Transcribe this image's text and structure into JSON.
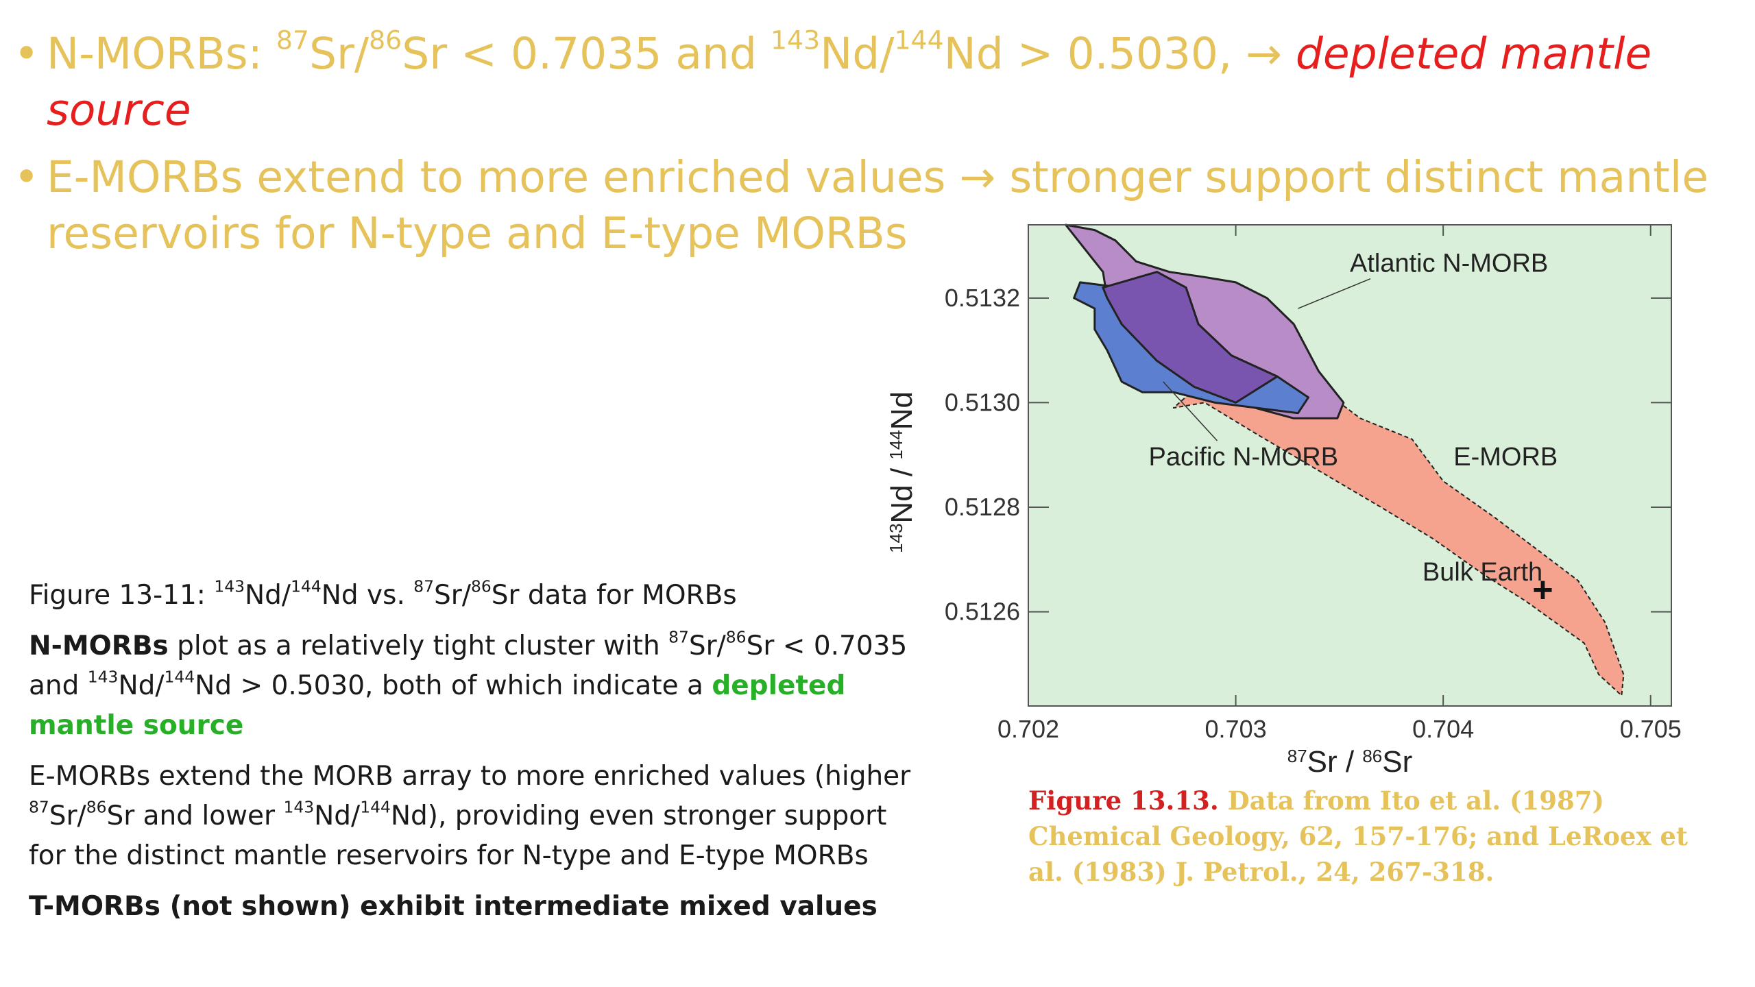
{
  "bullets": [
    {
      "dot": "•",
      "t1": "N-MORBs: ",
      "sup1": "87",
      "t2": "Sr/",
      "sup2": "86",
      "t3": "Sr < 0.7035 and ",
      "sup3": "143",
      "t4": "Nd/",
      "sup4": "144",
      "t5": "Nd > 0.5030, → ",
      "emph": "depleted mantle source"
    },
    {
      "dot": "•",
      "text": "E-MORBs extend to more enriched values → stronger support distinct mantle reservoirs for N-type and E-type MORBs"
    }
  ],
  "caption": {
    "p1": {
      "a": "Figure 13-11: ",
      "s1": "143",
      "b": "Nd/",
      "s2": "144",
      "c": "Nd vs. ",
      "s3": "87",
      "d": "Sr/",
      "s4": "86",
      "e": "Sr data for MORBs"
    },
    "p2": {
      "bold": "N-MORBs",
      "a": " plot as a relatively tight cluster with ",
      "s1": "87",
      "b": "Sr/",
      "s2": "86",
      "c": "Sr < 0.7035 and ",
      "s3": "143",
      "d": "Nd/",
      "s4": "144",
      "e": "Nd > 0.5030, both of which indicate a ",
      "green": "depleted mantle source"
    },
    "p3": {
      "a": "E-MORBs extend the MORB array to more enriched values (higher ",
      "s1": "87",
      "b": "Sr/",
      "s2": "86",
      "c": "Sr and lower ",
      "s3": "143",
      "d": "Nd/",
      "s4": "144",
      "e": "Nd), providing even stronger support for the distinct mantle reservoirs for N-type and E-type MORBs"
    },
    "p4": "T-MORBs (not shown) exhibit intermediate mixed values"
  },
  "figure_note": {
    "ref": "Figure 13.13.",
    "text": " Data from Ito et al. (1987) Chemical Geology, 62, 157-176; and LeRoex et al. (1983) J. Petrol., 24, 267-318."
  },
  "chart_data": {
    "type": "scatter",
    "title": "",
    "xlabel": {
      "sup1": "87",
      "t1": "Sr / ",
      "sup2": "86",
      "t2": "Sr"
    },
    "ylabel": {
      "sup1": "143",
      "t1": "Nd / ",
      "sup2": "144",
      "t2": "Nd"
    },
    "xlim": [
      0.702,
      0.7051
    ],
    "ylim": [
      0.51242,
      0.51334
    ],
    "xticks": [
      0.702,
      0.703,
      0.704,
      0.705
    ],
    "xtick_labels": [
      "0.702",
      "0.703",
      "0.704",
      "0.705"
    ],
    "yticks": [
      0.5126,
      0.5128,
      0.513,
      0.5132
    ],
    "ytick_labels": [
      "0.5126",
      "0.5128",
      "0.5130",
      "0.5132"
    ],
    "grid": false,
    "colors": {
      "background": "#d9efd9",
      "e_morb": "#f5a38f",
      "atlantic": "#b88cc6",
      "pacific": "#5c7fcf",
      "overlap": "#7a55b0"
    },
    "fields": [
      {
        "name": "E-MORB",
        "label": "E-MORB",
        "fill": "#f5a38f",
        "stroke_style": "dashed",
        "points": [
          [
            0.70308,
            0.51311
          ],
          [
            0.7033,
            0.51306
          ],
          [
            0.7036,
            0.51297
          ],
          [
            0.70385,
            0.51293
          ],
          [
            0.704,
            0.51285
          ],
          [
            0.70425,
            0.51278
          ],
          [
            0.70445,
            0.51272
          ],
          [
            0.70465,
            0.51266
          ],
          [
            0.70478,
            0.51258
          ],
          [
            0.70487,
            0.51248
          ],
          [
            0.70486,
            0.51244
          ],
          [
            0.70475,
            0.51248
          ],
          [
            0.70468,
            0.51254
          ],
          [
            0.7044,
            0.51262
          ],
          [
            0.7042,
            0.51267
          ],
          [
            0.70395,
            0.51274
          ],
          [
            0.7037,
            0.5128
          ],
          [
            0.7034,
            0.51287
          ],
          [
            0.7031,
            0.51294
          ],
          [
            0.70285,
            0.513
          ],
          [
            0.7027,
            0.51299
          ],
          [
            0.7029,
            0.51306
          ]
        ]
      },
      {
        "name": "Atlantic N-MORB",
        "label": "Atlantic N-MORB",
        "fill": "#b88cc6",
        "stroke_style": "solid",
        "points": [
          [
            0.70218,
            0.51334
          ],
          [
            0.70232,
            0.51333
          ],
          [
            0.70242,
            0.51331
          ],
          [
            0.70252,
            0.51327
          ],
          [
            0.70268,
            0.51325
          ],
          [
            0.70285,
            0.51324
          ],
          [
            0.703,
            0.51323
          ],
          [
            0.70315,
            0.5132
          ],
          [
            0.70328,
            0.51315
          ],
          [
            0.7034,
            0.51306
          ],
          [
            0.70352,
            0.513
          ],
          [
            0.70349,
            0.51297
          ],
          [
            0.70328,
            0.51297
          ],
          [
            0.703,
            0.513
          ],
          [
            0.7028,
            0.51303
          ],
          [
            0.70262,
            0.51308
          ],
          [
            0.70245,
            0.51315
          ],
          [
            0.70238,
            0.5132
          ],
          [
            0.70236,
            0.51325
          ],
          [
            0.70228,
            0.51329
          ]
        ]
      },
      {
        "name": "Pacific N-MORB",
        "label": "Pacific N-MORB",
        "fill": "#5c7fcf",
        "stroke_style": "solid",
        "points": [
          [
            0.70225,
            0.51323
          ],
          [
            0.70245,
            0.51322
          ],
          [
            0.70262,
            0.51325
          ],
          [
            0.70276,
            0.51322
          ],
          [
            0.70282,
            0.51315
          ],
          [
            0.70298,
            0.51309
          ],
          [
            0.7032,
            0.51305
          ],
          [
            0.70335,
            0.51301
          ],
          [
            0.7033,
            0.51298
          ],
          [
            0.7031,
            0.51299
          ],
          [
            0.7029,
            0.513
          ],
          [
            0.7027,
            0.51302
          ],
          [
            0.70255,
            0.51302
          ],
          [
            0.70245,
            0.51304
          ],
          [
            0.70238,
            0.5131
          ],
          [
            0.70232,
            0.51314
          ],
          [
            0.70232,
            0.51318
          ],
          [
            0.70222,
            0.5132
          ]
        ]
      },
      {
        "name": "overlap",
        "fill": "#7a55b0",
        "stroke_style": "solid",
        "points": [
          [
            0.70236,
            0.51322
          ],
          [
            0.70262,
            0.51325
          ],
          [
            0.70276,
            0.51322
          ],
          [
            0.70282,
            0.51315
          ],
          [
            0.70298,
            0.51309
          ],
          [
            0.7032,
            0.51305
          ],
          [
            0.703,
            0.513
          ],
          [
            0.7028,
            0.51303
          ],
          [
            0.70262,
            0.51308
          ],
          [
            0.70245,
            0.51315
          ],
          [
            0.70238,
            0.5132
          ]
        ]
      }
    ],
    "annotations": [
      {
        "text": "Atlantic N-MORB",
        "x": 0.70355,
        "y": 0.51325,
        "leader_to": [
          0.7033,
          0.51318
        ]
      },
      {
        "text": "Pacific N-MORB",
        "x": 0.70258,
        "y": 0.51288,
        "leader_to": [
          0.70265,
          0.51304
        ]
      },
      {
        "text": "E-MORB",
        "x": 0.70405,
        "y": 0.51288
      },
      {
        "text": "Bulk Earth",
        "x": 0.7039,
        "y": 0.51266
      }
    ],
    "points": [
      {
        "label": "Bulk Earth",
        "marker": "+",
        "x": 0.70448,
        "y": 0.51264
      }
    ]
  }
}
